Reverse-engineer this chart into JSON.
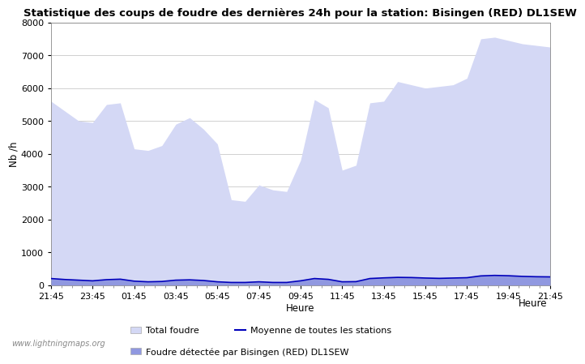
{
  "title": "Statistique des coups de foudre des dernières 24h pour la station: Bisingen (RED) DL1SEW",
  "xlabel": "Heure",
  "ylabel": "Nb /h",
  "xlim": [
    0,
    24
  ],
  "ylim": [
    0,
    8000
  ],
  "yticks": [
    0,
    1000,
    2000,
    3000,
    4000,
    5000,
    6000,
    7000,
    8000
  ],
  "xtick_labels": [
    "21:45",
    "23:45",
    "01:45",
    "03:45",
    "05:45",
    "07:45",
    "09:45",
    "11:45",
    "13:45",
    "15:45",
    "17:45",
    "19:45",
    "21:45"
  ],
  "xtick_positions": [
    0,
    2,
    4,
    6,
    8,
    10,
    12,
    14,
    16,
    18,
    20,
    22,
    24
  ],
  "bg_color": "#ffffff",
  "plot_bg_color": "#ffffff",
  "grid_color": "#d0d0d0",
  "fill_total_color": "#d4d8f5",
  "fill_station_color": "#9098e0",
  "line_mean_color": "#0000bb",
  "watermark": "www.lightningmaps.org",
  "total_foudre": [
    5600,
    5300,
    5000,
    4950,
    5500,
    5550,
    4150,
    4100,
    4250,
    4900,
    5100,
    4750,
    4300,
    2600,
    2550,
    3050,
    2900,
    2850,
    3800,
    5650,
    5400,
    3500,
    3650,
    5550,
    5600,
    6200,
    6100,
    6000,
    6050,
    6100,
    6300,
    7500,
    7550,
    7450,
    7350,
    7300,
    7250
  ],
  "station_foudre": [
    200,
    170,
    150,
    130,
    165,
    180,
    120,
    100,
    110,
    150,
    160,
    140,
    100,
    80,
    80,
    100,
    80,
    80,
    130,
    200,
    175,
    100,
    105,
    200,
    220,
    235,
    230,
    215,
    205,
    215,
    225,
    280,
    295,
    285,
    265,
    255,
    250
  ],
  "mean_foudre": [
    200,
    170,
    150,
    130,
    165,
    180,
    120,
    100,
    110,
    150,
    160,
    140,
    100,
    80,
    80,
    100,
    80,
    80,
    130,
    200,
    175,
    100,
    105,
    200,
    220,
    235,
    230,
    215,
    205,
    215,
    225,
    280,
    295,
    285,
    265,
    255,
    250
  ],
  "legend_total": "Total foudre",
  "legend_mean": "Moyenne de toutes les stations",
  "legend_station": "Foudre détectée par Bisingen (RED) DL1SEW",
  "title_fontsize": 9.5,
  "axis_fontsize": 8.5,
  "tick_fontsize": 8
}
